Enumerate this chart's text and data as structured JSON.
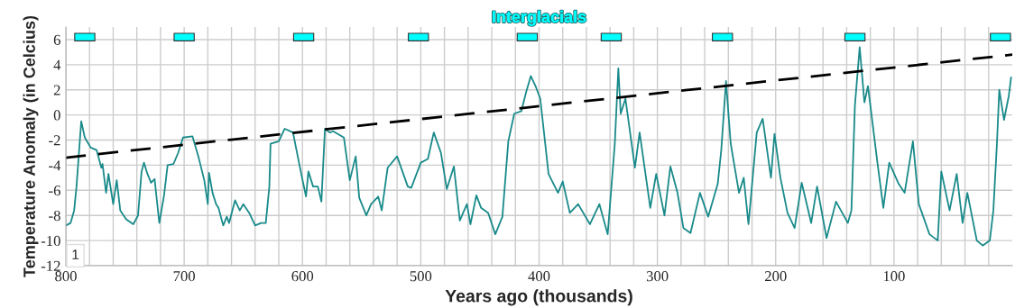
{
  "chart_data": {
    "type": "line",
    "xlabel": "Years ago (thousands)",
    "ylabel": "Temperature Anomaly (in Celcius)",
    "xlim": [
      800,
      0
    ],
    "ylim": [
      -12,
      7
    ],
    "xticks": [
      800,
      {
        "value": 780,
        "label": null
      },
      {
        "value": 760,
        "label": null
      },
      {
        "value": 740,
        "label": null
      },
      {
        "value": 720,
        "label": null
      },
      700,
      {
        "value": 680,
        "label": null
      },
      {
        "value": 660,
        "label": null
      },
      {
        "value": 640,
        "label": null
      },
      {
        "value": 620,
        "label": null
      },
      600,
      {
        "value": 580,
        "label": null
      },
      {
        "value": 560,
        "label": null
      },
      {
        "value": 540,
        "label": null
      },
      {
        "value": 520,
        "label": null
      },
      500,
      {
        "value": 480,
        "label": null
      },
      {
        "value": 460,
        "label": null
      },
      {
        "value": 440,
        "label": null
      },
      {
        "value": 420,
        "label": null
      },
      400,
      {
        "value": 380,
        "label": null
      },
      {
        "value": 360,
        "label": null
      },
      {
        "value": 340,
        "label": null
      },
      {
        "value": 320,
        "label": null
      },
      300,
      {
        "value": 280,
        "label": null
      },
      {
        "value": 260,
        "label": null
      },
      {
        "value": 240,
        "label": null
      },
      {
        "value": 220,
        "label": null
      },
      200,
      {
        "value": 180,
        "label": null
      },
      {
        "value": 160,
        "label": null
      },
      {
        "value": 140,
        "label": null
      },
      {
        "value": 120,
        "label": null
      },
      100,
      {
        "value": 80,
        "label": null
      },
      {
        "value": 60,
        "label": null
      },
      {
        "value": 40,
        "label": null
      },
      {
        "value": 20,
        "label": null
      }
    ],
    "yticks": [
      -12,
      -10,
      -8,
      -6,
      -4,
      -2,
      0,
      2,
      4,
      6
    ],
    "grid": true,
    "legend": "top",
    "annotations": [
      "1"
    ],
    "series": [
      {
        "color": "#1a8a8a",
        "line_style": "solid",
        "x": [
          800,
          796,
          793,
          791,
          787,
          784,
          779,
          774,
          770,
          769,
          766,
          764,
          760,
          757,
          754,
          749,
          743,
          739,
          736,
          734,
          731,
          728,
          725,
          721,
          717,
          714,
          709,
          705,
          701,
          693,
          688,
          683,
          680,
          679,
          676,
          673,
          671,
          667,
          664,
          662,
          657,
          653,
          650,
          645,
          640,
          635,
          631,
          628,
          627,
          620,
          615,
          608,
          604,
          601,
          597,
          595,
          591,
          587,
          584,
          581,
          577,
          574,
          565,
          560,
          555,
          552,
          546,
          542,
          536,
          533,
          528,
          520,
          511,
          508,
          500,
          494,
          489,
          483,
          478,
          472,
          467,
          461,
          458,
          453,
          449,
          443,
          437,
          431,
          426,
          421,
          415,
          411,
          407,
          403,
          399,
          392,
          384,
          380,
          374,
          367,
          357,
          349,
          342,
          336,
          333,
          331,
          327,
          319,
          315,
          306,
          301,
          294,
          289,
          283,
          278,
          272,
          264,
          257,
          249,
          246,
          242,
          238,
          231,
          227,
          223,
          216,
          211,
          204,
          201,
          196,
          190,
          184,
          178,
          170,
          165,
          157,
          149,
          139,
          136,
          133,
          129,
          125,
          122,
          114,
          109,
          104,
          96,
          91,
          84,
          79,
          70,
          63,
          60,
          53,
          47,
          42,
          38,
          30,
          25,
          19,
          16,
          13,
          11,
          7,
          3,
          1
        ],
        "values": [
          -8.8,
          -8.6,
          -7.6,
          -5.7,
          -0.5,
          -1.8,
          -2.6,
          -2.8,
          -4.2,
          -3.9,
          -6.2,
          -4.7,
          -7.1,
          -5.2,
          -7.6,
          -8.3,
          -8.7,
          -8.0,
          -4.5,
          -3.8,
          -4.7,
          -5.4,
          -5.1,
          -8.6,
          -6.4,
          -4.0,
          -3.9,
          -3.0,
          -1.8,
          -1.7,
          -3.3,
          -5.2,
          -7.1,
          -4.6,
          -6.2,
          -7.1,
          -7.4,
          -8.8,
          -8.1,
          -8.6,
          -6.8,
          -7.6,
          -7.1,
          -7.8,
          -8.8,
          -8.6,
          -8.6,
          -5.7,
          -2.3,
          -2.1,
          -1.1,
          -1.4,
          -3.3,
          -4.7,
          -6.5,
          -4.5,
          -5.7,
          -5.7,
          -6.9,
          -1.1,
          -1.4,
          -1.3,
          -1.8,
          -5.2,
          -3.3,
          -6.6,
          -8.0,
          -7.1,
          -6.5,
          -7.6,
          -4.2,
          -3.3,
          -5.7,
          -5.8,
          -3.8,
          -3.5,
          -1.4,
          -3.0,
          -5.9,
          -4.1,
          -8.4,
          -7.1,
          -8.7,
          -6.4,
          -7.4,
          -7.8,
          -9.5,
          -8.1,
          -2.1,
          0.1,
          0.3,
          1.8,
          3.1,
          2.3,
          1.3,
          -4.7,
          -6.2,
          -5.3,
          -7.8,
          -7.1,
          -8.7,
          -7.1,
          -9.5,
          -2.3,
          3.7,
          0.1,
          1.3,
          -4.2,
          -1.4,
          -7.4,
          -4.7,
          -8.0,
          -4.1,
          -6.2,
          -9.0,
          -9.4,
          -6.2,
          -8.1,
          -5.5,
          -2.8,
          2.7,
          -2.3,
          -6.2,
          -5.0,
          -8.7,
          -1.4,
          -0.3,
          -5.0,
          -1.5,
          -5.0,
          -7.8,
          -9.0,
          -5.4,
          -8.6,
          -5.7,
          -9.8,
          -6.9,
          -8.6,
          -7.6,
          0.8,
          5.4,
          1.0,
          2.3,
          -3.8,
          -7.4,
          -3.8,
          -5.5,
          -6.2,
          -2.1,
          -7.1,
          -9.5,
          -10.0,
          -4.5,
          -7.6,
          -4.7,
          -8.6,
          -6.2,
          -10.0,
          -10.4,
          -10.0,
          -7.6,
          -2.3,
          2.0,
          -0.4,
          1.5,
          3.0
        ]
      },
      {
        "type": "line",
        "color": "#000000",
        "line_style": "dashed",
        "x": [
          800,
          0
        ],
        "values": [
          -3.4,
          4.8
        ]
      },
      {
        "type": "bar",
        "name": "Interglacials",
        "color": "#00ffff",
        "x": [
          784,
          700,
          599,
          502,
          410,
          339,
          245,
          133,
          10
        ],
        "base": [
          5.9,
          5.9,
          5.9,
          5.9,
          5.9,
          5.9,
          5.9,
          5.9,
          5.9
        ],
        "values": [
          0.6,
          0.6,
          0.6,
          0.6,
          0.6,
          0.6,
          0.6,
          0.6,
          0.6
        ]
      }
    ]
  }
}
